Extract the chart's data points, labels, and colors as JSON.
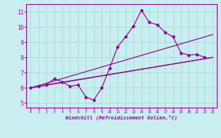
{
  "title": "",
  "xlabel": "Windchill (Refroidissement éolien,°C)",
  "ylabel": "",
  "background_color": "#c8eef0",
  "grid_color": "#aadddd",
  "line_color": "#990099",
  "xlim": [
    -0.5,
    23.5
  ],
  "ylim": [
    4.7,
    11.5
  ],
  "xticks": [
    0,
    1,
    2,
    3,
    4,
    5,
    6,
    7,
    8,
    9,
    10,
    11,
    12,
    13,
    14,
    15,
    16,
    17,
    18,
    19,
    20,
    21,
    22,
    23
  ],
  "yticks": [
    5,
    6,
    7,
    8,
    9,
    10,
    11
  ],
  "series1_x": [
    0,
    1,
    2,
    3,
    4,
    5,
    6,
    7,
    8,
    9,
    10,
    11,
    12,
    13,
    14,
    15,
    16,
    17,
    18,
    19,
    20,
    21,
    22
  ],
  "series1_y": [
    6.0,
    6.1,
    6.2,
    6.6,
    6.4,
    6.1,
    6.2,
    5.4,
    5.2,
    6.0,
    7.3,
    8.7,
    9.35,
    10.05,
    11.1,
    10.3,
    10.15,
    9.65,
    9.35,
    8.3,
    8.15,
    8.2,
    8.0
  ],
  "series2_x": [
    0,
    23
  ],
  "series2_y": [
    6.0,
    8.0
  ],
  "series3_x": [
    0,
    23
  ],
  "series3_y": [
    6.0,
    9.5
  ],
  "series4_x": [
    2,
    23
  ],
  "series4_y": [
    6.2,
    8.0
  ]
}
